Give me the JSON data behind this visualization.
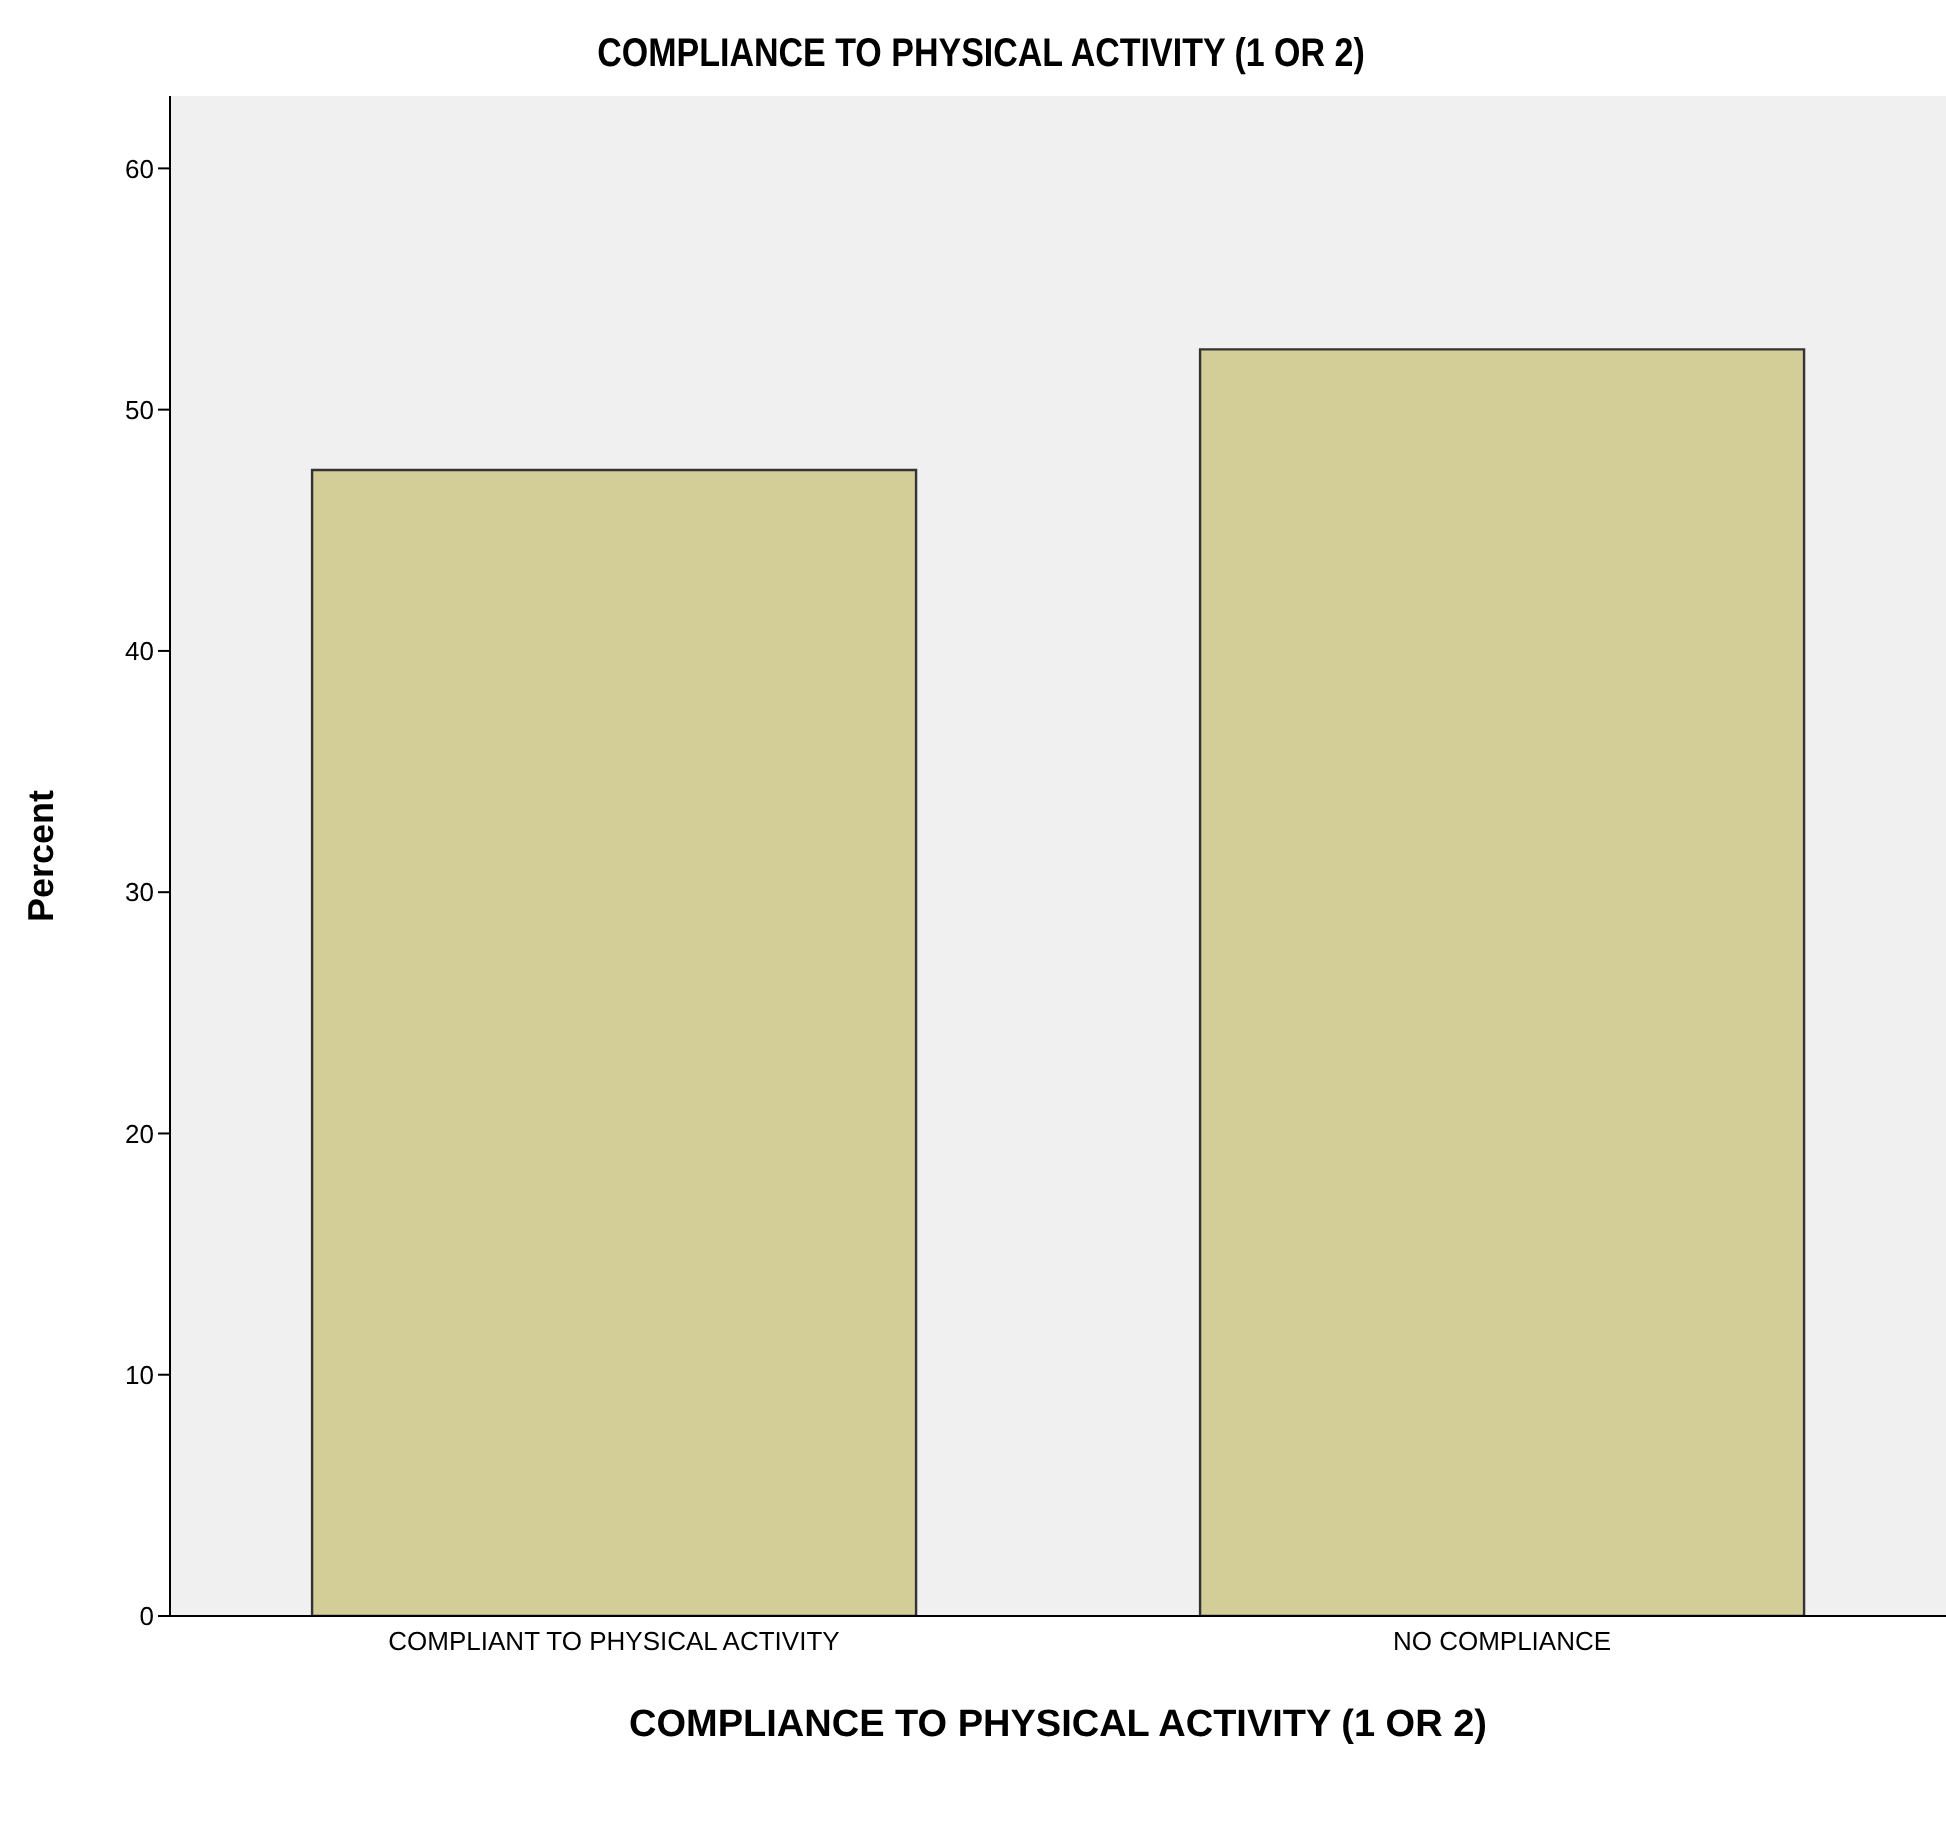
{
  "chart_data": {
    "type": "bar",
    "title": "COMPLIANCE TO PHYSICAL ACTIVITY (1 OR 2)",
    "xlabel": "COMPLIANCE TO PHYSICAL ACTIVITY (1 OR 2)",
    "ylabel": "Percent",
    "categories": [
      "COMPLIANT TO PHYSICAL ACTIVITY",
      "NO COMPLIANCE"
    ],
    "values": [
      47.5,
      52.5
    ],
    "color": "#d3cd98",
    "ylim": [
      0,
      63
    ],
    "yticks": [
      0,
      10,
      20,
      30,
      40,
      50,
      60
    ],
    "grid": false,
    "legend": false
  }
}
